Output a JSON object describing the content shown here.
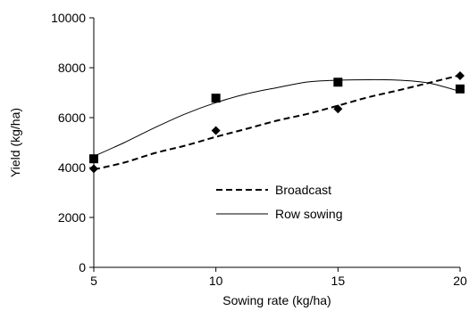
{
  "chart_data": {
    "type": "scatter",
    "title": "",
    "xlabel": "Sowing rate (kg/ha)",
    "ylabel": "Yield (kg/ha)",
    "xlim": [
      5,
      20
    ],
    "ylim": [
      0,
      10000
    ],
    "xticks": [
      5,
      10,
      15,
      20
    ],
    "yticks": [
      0,
      2000,
      4000,
      6000,
      8000,
      10000
    ],
    "grid": false,
    "legend_position": "center",
    "series": [
      {
        "name": "Broadcast",
        "marker": "diamond",
        "line_style": "dashed",
        "color": "#000000",
        "points": [
          {
            "x": 5,
            "y": 3950
          },
          {
            "x": 10,
            "y": 5480
          },
          {
            "x": 15,
            "y": 6350
          },
          {
            "x": 20,
            "y": 7680
          }
        ],
        "trend": [
          {
            "x": 5,
            "y": 3920
          },
          {
            "x": 6.25,
            "y": 4200
          },
          {
            "x": 7.5,
            "y": 4580
          },
          {
            "x": 8.75,
            "y": 4880
          },
          {
            "x": 10,
            "y": 5230
          },
          {
            "x": 11.25,
            "y": 5550
          },
          {
            "x": 12.5,
            "y": 5880
          },
          {
            "x": 13.75,
            "y": 6150
          },
          {
            "x": 15,
            "y": 6480
          },
          {
            "x": 16.25,
            "y": 6820
          },
          {
            "x": 17.5,
            "y": 7100
          },
          {
            "x": 18.75,
            "y": 7400
          },
          {
            "x": 20,
            "y": 7700
          }
        ]
      },
      {
        "name": "Row sowing",
        "marker": "square",
        "line_style": "solid",
        "color": "#000000",
        "points": [
          {
            "x": 5,
            "y": 4350
          },
          {
            "x": 10,
            "y": 6780
          },
          {
            "x": 15,
            "y": 7420
          },
          {
            "x": 20,
            "y": 7150
          }
        ],
        "trend": [
          {
            "x": 5,
            "y": 4450
          },
          {
            "x": 6.25,
            "y": 5000
          },
          {
            "x": 7.5,
            "y": 5600
          },
          {
            "x": 8.75,
            "y": 6150
          },
          {
            "x": 10,
            "y": 6600
          },
          {
            "x": 11.25,
            "y": 6950
          },
          {
            "x": 12.5,
            "y": 7200
          },
          {
            "x": 13.75,
            "y": 7430
          },
          {
            "x": 15,
            "y": 7500
          },
          {
            "x": 16.25,
            "y": 7520
          },
          {
            "x": 17.5,
            "y": 7500
          },
          {
            "x": 18.75,
            "y": 7380
          },
          {
            "x": 20,
            "y": 7050
          }
        ]
      }
    ]
  }
}
